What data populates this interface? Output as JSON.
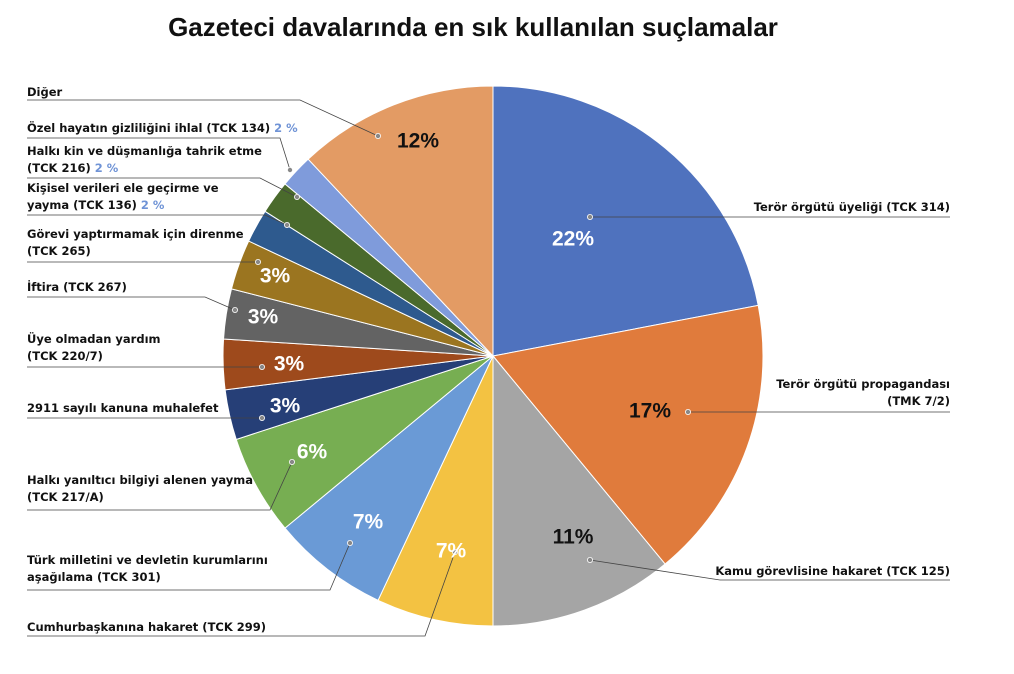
{
  "chart_data": {
    "type": "pie",
    "title": "Gazeteci davalarında en sık kullanılan suçlamalar",
    "categories": [
      "Terör örgütü üyeliği (TCK 314)",
      "Terör örgütü propagandası\n(TMK 7/2)",
      "Kamu görevlisine hakaret (TCK 125)",
      "Cumhurbaşkanına hakaret (TCK 299)",
      "Türk milletini ve devletin kurumlarını\naşağılama (TCK 301)",
      "Halkı yanıltıcı bilgiyi alenen yayma\n(TCK 217/A)",
      "2911 sayılı kanuna muhalefet",
      "Üye olmadan yardım\n(TCK 220/7)",
      "İftira (TCK 267)",
      "Görevi yaptırmamak için direnme\n(TCK 265)",
      "Kişisel verileri ele geçirme ve\nyayma (TCK 136)",
      "Halkı kin ve düşmanlığa tahrik etme\n(TCK 216)",
      "Özel hayatın gizliliğini ihlal (TCK 134)",
      "Diğer"
    ],
    "values": [
      22,
      17,
      11,
      7,
      7,
      6,
      3,
      3,
      3,
      3,
      2,
      2,
      2,
      12
    ],
    "value_labels": [
      "22%",
      "17%",
      "11%",
      "7%",
      "7%",
      "6%",
      "3%",
      "3%",
      "3%",
      "3%",
      "2 %",
      "2 %",
      "2 %",
      "12%"
    ],
    "colors": [
      "#4f72be",
      "#e07b3c",
      "#a5a5a5",
      "#f3c242",
      "#6a9ad6",
      "#77ae52",
      "#263f77",
      "#9e4a1c",
      "#636363",
      "#9b7520",
      "#2e5a8e",
      "#4a6a2c",
      "#7f9bdb",
      "#e39b64"
    ]
  }
}
